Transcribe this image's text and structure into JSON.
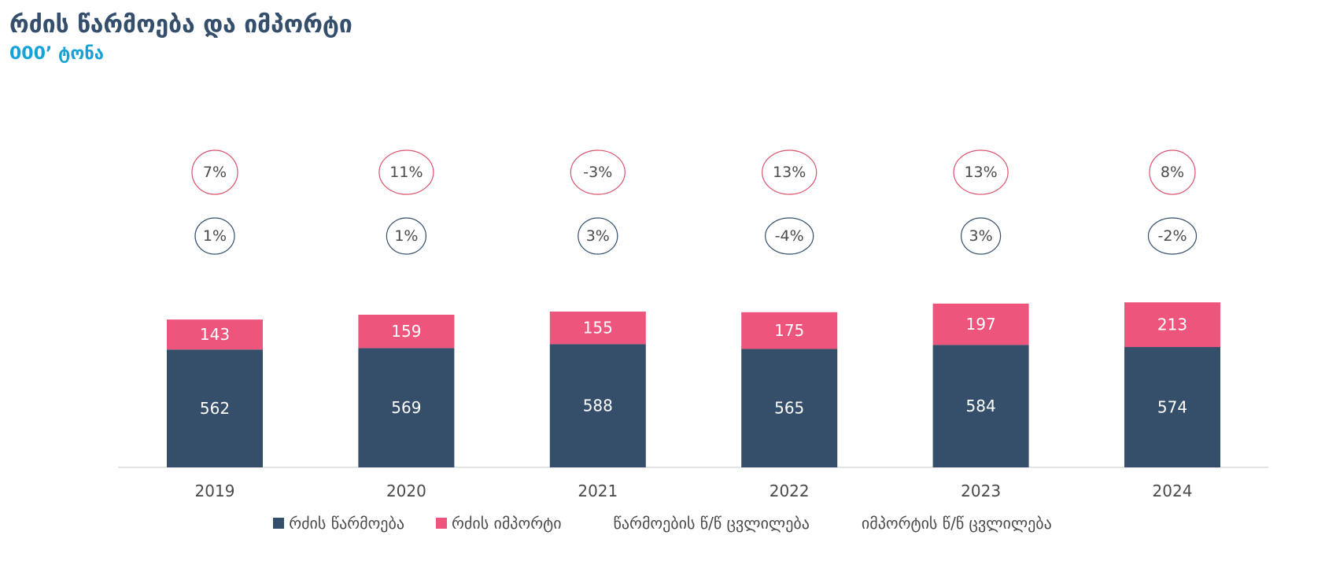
{
  "header": {
    "title": "რძის წარმოება და იმპორტი",
    "subtitle": "000’ ტონა"
  },
  "colors": {
    "production": "#354f6b",
    "import": "#ee557c",
    "import_change_ring": "#d9536c",
    "production_change_ring": "#344e6b",
    "axis": "#dcdcdc"
  },
  "legend": {
    "production": "რძის წარმოება",
    "import": "რძის იმპორტი",
    "production_change": "წარმოების წ/წ ცვლილება",
    "import_change": "იმპორტის წ/წ ცვლილება"
  },
  "chart_data": {
    "type": "bar",
    "stacked": true,
    "categories": [
      "2019",
      "2020",
      "2021",
      "2022",
      "2023",
      "2024"
    ],
    "series": [
      {
        "name": "რძის წარმოება",
        "values": [
          562,
          569,
          588,
          565,
          584,
          574
        ]
      },
      {
        "name": "რძის იმპორტი",
        "values": [
          143,
          159,
          155,
          175,
          197,
          213
        ]
      }
    ],
    "import_yoy_change": [
      "7%",
      "11%",
      "-3%",
      "13%",
      "13%",
      "8%"
    ],
    "production_yoy_change": [
      "1%",
      "1%",
      "3%",
      "-4%",
      "3%",
      "-2%"
    ],
    "ylim": [
      0,
      800
    ],
    "grid": false,
    "legend_position": "bottom"
  }
}
